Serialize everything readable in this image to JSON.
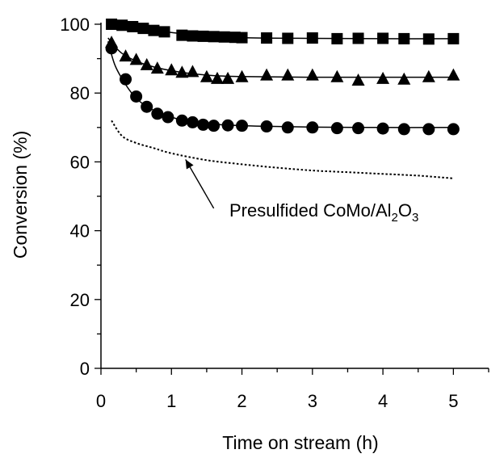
{
  "chart_data": {
    "type": "scatter",
    "xlabel": "Time on stream (h)",
    "ylabel": "Conversion (%)",
    "xlim": [
      0,
      5.5
    ],
    "ylim": [
      0,
      100
    ],
    "xticks": [
      "0",
      "1",
      "2",
      "3",
      "4",
      "5"
    ],
    "yticks": [
      "0",
      "20",
      "40",
      "60",
      "80",
      "100"
    ],
    "grid": false,
    "legend": "none",
    "series": [
      {
        "marker": "square",
        "color": "#000000",
        "points": [
          [
            0.15,
            100.0
          ],
          [
            0.3,
            99.7
          ],
          [
            0.45,
            99.3
          ],
          [
            0.6,
            98.8
          ],
          [
            0.75,
            98.2
          ],
          [
            0.9,
            97.8
          ],
          [
            1.15,
            96.8
          ],
          [
            1.3,
            96.6
          ],
          [
            1.45,
            96.5
          ],
          [
            1.6,
            96.4
          ],
          [
            1.75,
            96.3
          ],
          [
            1.9,
            96.2
          ],
          [
            2.0,
            96.1
          ],
          [
            2.35,
            96.0
          ],
          [
            2.65,
            95.9
          ],
          [
            3.0,
            96.0
          ],
          [
            3.35,
            95.8
          ],
          [
            3.65,
            95.9
          ],
          [
            4.0,
            95.9
          ],
          [
            4.3,
            95.8
          ],
          [
            4.65,
            95.7
          ],
          [
            5.0,
            95.8
          ]
        ],
        "fit": [
          [
            0.1,
            100.2
          ],
          [
            0.5,
            99.3
          ],
          [
            1.0,
            97.6
          ],
          [
            1.5,
            96.7
          ],
          [
            2.0,
            96.1
          ],
          [
            3.0,
            95.9
          ],
          [
            4.0,
            95.8
          ],
          [
            5.0,
            95.8
          ]
        ]
      },
      {
        "marker": "triangle",
        "color": "#000000",
        "points": [
          [
            0.15,
            94.5
          ],
          [
            0.35,
            90.5
          ],
          [
            0.5,
            89.5
          ],
          [
            0.65,
            88.0
          ],
          [
            0.8,
            87.0
          ],
          [
            1.0,
            86.5
          ],
          [
            1.15,
            85.8
          ],
          [
            1.3,
            86.0
          ],
          [
            1.5,
            84.5
          ],
          [
            1.65,
            84.0
          ],
          [
            1.8,
            84.0
          ],
          [
            2.0,
            84.5
          ],
          [
            2.35,
            85.0
          ],
          [
            2.65,
            85.0
          ],
          [
            3.0,
            85.0
          ],
          [
            3.35,
            84.5
          ],
          [
            3.65,
            83.5
          ],
          [
            4.0,
            84.0
          ],
          [
            4.3,
            83.8
          ],
          [
            4.65,
            84.5
          ],
          [
            5.0,
            85.0
          ]
        ],
        "fit": [
          [
            0.1,
            96.0
          ],
          [
            0.3,
            91.5
          ],
          [
            0.6,
            88.5
          ],
          [
            1.0,
            86.5
          ],
          [
            1.5,
            85.2
          ],
          [
            2.0,
            84.8
          ],
          [
            3.0,
            84.6
          ],
          [
            4.0,
            84.6
          ],
          [
            5.0,
            84.6
          ]
        ]
      },
      {
        "marker": "circle",
        "color": "#000000",
        "points": [
          [
            0.15,
            93.0
          ],
          [
            0.35,
            84.0
          ],
          [
            0.5,
            79.0
          ],
          [
            0.65,
            76.0
          ],
          [
            0.8,
            74.0
          ],
          [
            0.95,
            73.0
          ],
          [
            1.15,
            72.0
          ],
          [
            1.3,
            71.5
          ],
          [
            1.45,
            70.8
          ],
          [
            1.6,
            70.5
          ],
          [
            1.8,
            70.6
          ],
          [
            2.0,
            70.5
          ],
          [
            2.35,
            70.3
          ],
          [
            2.65,
            70.0
          ],
          [
            3.0,
            70.0
          ],
          [
            3.35,
            69.8
          ],
          [
            3.65,
            69.8
          ],
          [
            4.0,
            69.7
          ],
          [
            4.3,
            69.5
          ],
          [
            4.65,
            69.5
          ],
          [
            5.0,
            69.5
          ]
        ],
        "fit": [
          [
            0.1,
            95.0
          ],
          [
            0.2,
            88.0
          ],
          [
            0.35,
            82.5
          ],
          [
            0.5,
            78.5
          ],
          [
            0.7,
            75.5
          ],
          [
            1.0,
            73.0
          ],
          [
            1.3,
            71.5
          ],
          [
            1.7,
            70.8
          ],
          [
            2.2,
            70.4
          ],
          [
            3.0,
            70.1
          ],
          [
            4.0,
            70.0
          ],
          [
            5.0,
            70.0
          ]
        ]
      },
      {
        "marker": "none",
        "line": "dotted",
        "color": "#000000",
        "points": [
          [
            0.15,
            72.0
          ],
          [
            0.3,
            67.5
          ],
          [
            0.5,
            65.5
          ],
          [
            0.75,
            64.0
          ],
          [
            1.0,
            62.5
          ],
          [
            1.5,
            60.5
          ],
          [
            2.0,
            59.3
          ],
          [
            2.5,
            58.3
          ],
          [
            3.0,
            57.5
          ],
          [
            3.5,
            57.0
          ],
          [
            4.0,
            56.5
          ],
          [
            4.5,
            56.0
          ],
          [
            5.0,
            55.2
          ]
        ]
      }
    ],
    "annotations": [
      {
        "text_main": "Presulfided CoMo/Al",
        "sub1": "2",
        "text_mid": "O",
        "sub2": "3",
        "label_anchor": [
          1.7,
          45.0
        ],
        "arrow_from": [
          1.6,
          46.5
        ],
        "arrow_to": [
          1.2,
          60.7
        ]
      }
    ]
  }
}
